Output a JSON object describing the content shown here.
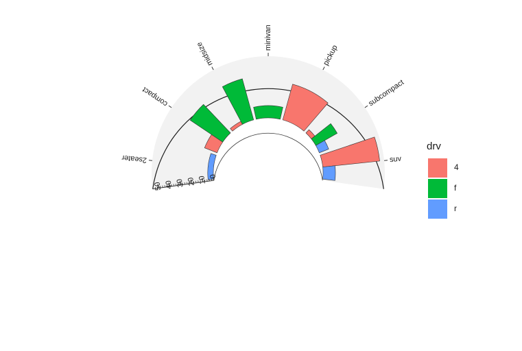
{
  "chart_data": {
    "type": "bar",
    "coord": "polar-half-ring",
    "categories": [
      "2seater",
      "compact",
      "midsize",
      "minivan",
      "pickup",
      "subcompact",
      "suv"
    ],
    "series": [
      {
        "name": "4",
        "color": "#F8766D",
        "values": [
          0,
          12,
          3,
          0,
          33,
          4,
          51
        ]
      },
      {
        "name": "f",
        "color": "#00BA38",
        "values": [
          0,
          35,
          38,
          11,
          0,
          22,
          0
        ]
      },
      {
        "name": "r",
        "color": "#619CFF",
        "values": [
          5,
          0,
          0,
          0,
          0,
          9,
          11
        ]
      }
    ],
    "radial_ticks": [
      "0",
      "10",
      "20",
      "30",
      "40",
      "50"
    ],
    "radial_range": [
      0,
      55
    ],
    "legend": {
      "title": "drv",
      "position": "right"
    },
    "panel_background": "#F2F2F2",
    "grid": false
  }
}
